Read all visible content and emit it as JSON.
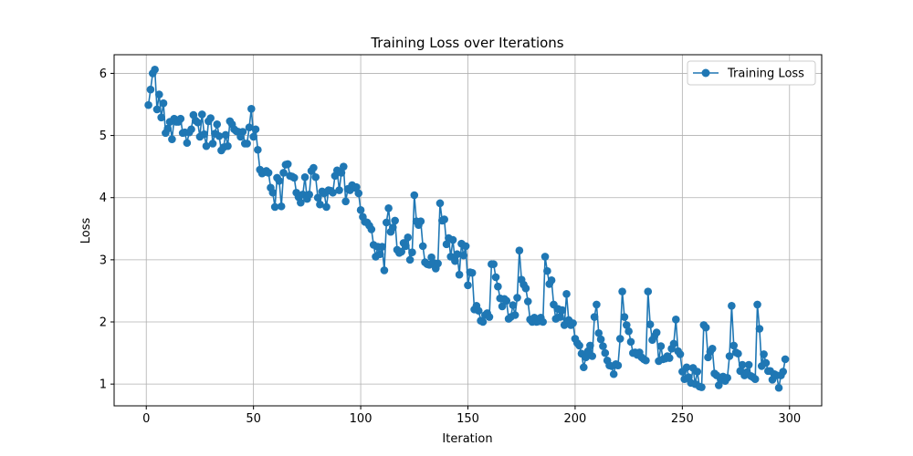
{
  "chart_data": {
    "type": "line",
    "title": "Training Loss over Iterations",
    "xlabel": "Iteration",
    "ylabel": "Loss",
    "xlim": [
      -15,
      315
    ],
    "ylim": [
      0.65,
      6.3
    ],
    "xticks": [
      0,
      50,
      100,
      150,
      200,
      250,
      300
    ],
    "yticks": [
      1,
      2,
      3,
      4,
      5,
      6
    ],
    "grid": true,
    "legend_position": "top-right",
    "series": [
      {
        "name": "Training Loss",
        "color": "#1f77b4",
        "marker": "circle",
        "x_start": 1,
        "x_step": 1,
        "values": [
          5.49,
          5.74,
          6.0,
          6.06,
          5.42,
          5.66,
          5.29,
          5.52,
          5.04,
          5.11,
          5.22,
          4.94,
          5.27,
          5.22,
          5.22,
          5.27,
          5.04,
          5.05,
          4.88,
          5.05,
          5.1,
          5.33,
          5.24,
          5.21,
          4.98,
          5.34,
          5.02,
          4.83,
          5.23,
          5.28,
          4.87,
          5.03,
          5.18,
          4.99,
          4.76,
          4.81,
          5.01,
          4.83,
          5.23,
          5.18,
          5.1,
          5.07,
          5.06,
          4.98,
          5.06,
          4.87,
          4.87,
          5.13,
          5.43,
          4.98,
          5.1,
          4.77,
          4.45,
          4.39,
          4.41,
          4.43,
          4.4,
          4.16,
          4.08,
          3.85,
          4.32,
          4.27,
          3.86,
          4.4,
          4.53,
          4.54,
          4.35,
          4.34,
          4.32,
          4.08,
          4.01,
          3.92,
          4.05,
          4.33,
          3.98,
          4.05,
          4.43,
          4.48,
          4.33,
          4.0,
          3.89,
          4.1,
          4.07,
          3.85,
          4.12,
          4.11,
          4.08,
          4.35,
          4.44,
          4.12,
          4.4,
          4.5,
          3.94,
          4.14,
          4.12,
          4.2,
          4.16,
          4.17,
          4.07,
          3.8,
          3.69,
          3.61,
          3.6,
          3.55,
          3.49,
          3.24,
          3.05,
          3.21,
          3.09,
          3.21,
          2.83,
          3.6,
          3.83,
          3.45,
          3.52,
          3.63,
          3.16,
          3.11,
          3.13,
          3.27,
          3.22,
          3.36,
          3.0,
          3.12,
          4.04,
          3.62,
          3.56,
          3.62,
          3.22,
          2.96,
          2.93,
          2.92,
          3.04,
          2.95,
          2.86,
          2.94,
          3.91,
          3.63,
          3.65,
          3.25,
          3.35,
          3.05,
          3.32,
          2.98,
          3.09,
          2.76,
          3.26,
          3.07,
          3.22,
          2.59,
          2.8,
          2.79,
          2.2,
          2.26,
          2.18,
          2.02,
          2.0,
          2.11,
          2.14,
          2.08,
          2.93,
          2.93,
          2.72,
          2.57,
          2.38,
          2.25,
          2.37,
          2.34,
          2.05,
          2.08,
          2.27,
          2.11,
          2.39,
          3.15,
          2.68,
          2.6,
          2.54,
          2.33,
          2.04,
          2.0,
          2.07,
          2.0,
          2.01,
          2.07,
          2.0,
          3.05,
          2.82,
          2.61,
          2.67,
          2.28,
          2.05,
          2.21,
          2.08,
          2.19,
          1.95,
          2.45,
          2.03,
          1.95,
          1.98,
          1.73,
          1.66,
          1.62,
          1.49,
          1.27,
          1.43,
          1.53,
          1.62,
          1.45,
          2.08,
          2.28,
          1.82,
          1.72,
          1.61,
          1.5,
          1.38,
          1.3,
          1.29,
          1.16,
          1.32,
          1.3,
          1.73,
          2.49,
          2.08,
          1.95,
          1.85,
          1.68,
          1.5,
          1.51,
          1.47,
          1.51,
          1.43,
          1.4,
          1.38,
          2.49,
          1.96,
          1.71,
          1.77,
          1.83,
          1.37,
          1.61,
          1.4,
          1.41,
          1.45,
          1.42,
          1.57,
          1.65,
          2.04,
          1.53,
          1.48,
          1.2,
          1.08,
          1.27,
          1.11,
          1.02,
          1.26,
          1.0,
          1.2,
          0.96,
          0.95,
          1.95,
          1.91,
          1.43,
          1.52,
          1.57,
          1.17,
          1.14,
          0.98,
          1.07,
          1.12,
          1.05,
          1.1,
          1.45,
          2.26,
          1.62,
          1.51,
          1.49,
          1.21,
          1.31,
          1.14,
          1.19,
          1.31,
          1.13,
          1.11,
          1.08,
          2.28,
          1.89,
          1.29,
          1.48,
          1.34,
          1.21,
          1.21,
          1.07,
          1.16,
          1.14,
          0.94,
          1.14,
          1.2,
          1.4
        ]
      }
    ]
  }
}
